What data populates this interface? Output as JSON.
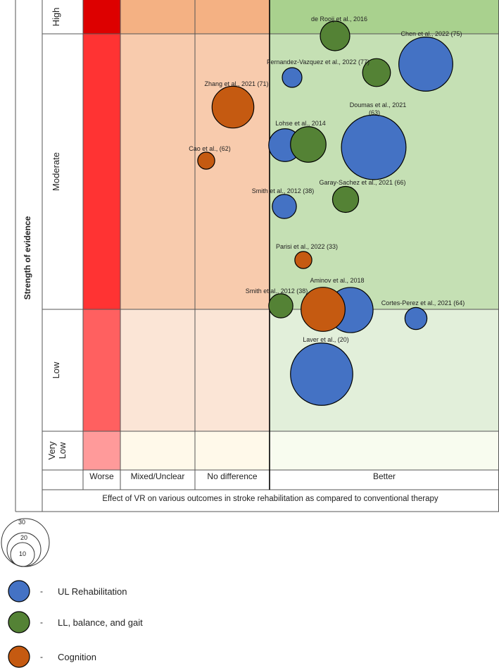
{
  "chart_data": {
    "type": "bubble-matrix",
    "title": "Effect of VR on various outcomes in stroke rehabilitation as compared to conventional therapy",
    "ylabel": "Strength of evidence",
    "x_categories": [
      "Worse",
      "Mixed/Unclear",
      "No difference",
      "Better"
    ],
    "y_categories": [
      "High",
      "Moderate",
      "Low",
      "Very Low"
    ],
    "y_category_lines": [
      [
        "High"
      ],
      [
        "Moderate"
      ],
      [
        "Low"
      ],
      [
        "Very",
        "Low"
      ]
    ],
    "colors": {
      "worse": [
        "#dd0000",
        "#ff3333",
        "#ff6060",
        "#ff9a9a"
      ],
      "mixed": [
        "#f4b183",
        "#f8cbad",
        "#fbe5d6",
        "#fff9ea"
      ],
      "nodiff": [
        "#f4b183",
        "#f8cbad",
        "#fbe5d6",
        "#fff9ea"
      ],
      "better": [
        "#a9d18e",
        "#c5e0b4",
        "#e2efda",
        "#f8fcef"
      ],
      "series": {
        "ul": "#4472c4",
        "ll": "#548235",
        "cog": "#c55a11"
      }
    },
    "bubble_scale": {
      "unit": "number of studies",
      "reference_sizes": [
        30,
        20,
        10
      ]
    },
    "series": [
      {
        "key": "ul",
        "name": "UL Rehabilitation"
      },
      {
        "key": "ll",
        "name": "LL, balance, and gait"
      },
      {
        "key": "cog",
        "name": "Cognition"
      }
    ],
    "bubbles": [
      {
        "label": "de Rooij et al., 2016",
        "series": "ll",
        "effect": "Better",
        "evidence": "High",
        "size": 9
      },
      {
        "label": "Chen et al., 2022 (75)",
        "series": "ul",
        "effect": "Better",
        "evidence": "Moderate",
        "size": 30
      },
      {
        "label": "Fernandez-Vazquez et al., 2022 (77)",
        "series": "ul",
        "effect": "Better",
        "evidence": "Moderate",
        "size": 4
      },
      {
        "label": "",
        "series": "ll",
        "effect": "Better",
        "evidence": "Moderate",
        "size": 8
      },
      {
        "label": "Zhang et al., 2021 (71)",
        "series": "cog",
        "effect": "No difference",
        "evidence": "Moderate",
        "size": 18
      },
      {
        "label": "Doumas et al., 2021 (63)",
        "series": "ul",
        "effect": "Better",
        "evidence": "Moderate",
        "size": 43
      },
      {
        "label": "Lohse et al., 2014",
        "series": "ul",
        "effect": "Better",
        "evidence": "Moderate",
        "size": 11
      },
      {
        "label": "",
        "series": "ll",
        "effect": "Better",
        "evidence": "Moderate",
        "size": 13
      },
      {
        "label": "Cao et al., (62)",
        "series": "cog",
        "effect": "Mixed/Unclear",
        "evidence": "Moderate",
        "size": 3
      },
      {
        "label": "Garay-Sachez et al., 2021 (66)",
        "series": "ll",
        "effect": "Better",
        "evidence": "Moderate",
        "size": 7
      },
      {
        "label": "Smith et al., 2012 (38)",
        "series": "ul",
        "effect": "Better",
        "evidence": "Moderate",
        "size": 6
      },
      {
        "label": "Parisi et al., 2022 (33)",
        "series": "cog",
        "effect": "Better",
        "evidence": "Moderate",
        "size": 3
      },
      {
        "label": "Aminov et al., 2018",
        "series": "ul",
        "effect": "Better",
        "evidence": "Moderate",
        "size": 21
      },
      {
        "label": "Smith et al., 2012 (38)",
        "series": "ll",
        "effect": "Better",
        "evidence": "Moderate",
        "size": 6
      },
      {
        "label": "",
        "series": "cog",
        "effect": "Better",
        "evidence": "Moderate",
        "size": 20
      },
      {
        "label": "Cortes-Perez et al., 2021 (64)",
        "series": "ul",
        "effect": "Better",
        "evidence": "Low",
        "size": 5
      },
      {
        "label": "Laver et al., (20)",
        "series": "ul",
        "effect": "Better",
        "evidence": "Low",
        "size": 40
      }
    ],
    "legend_placement": "bottom-left"
  }
}
